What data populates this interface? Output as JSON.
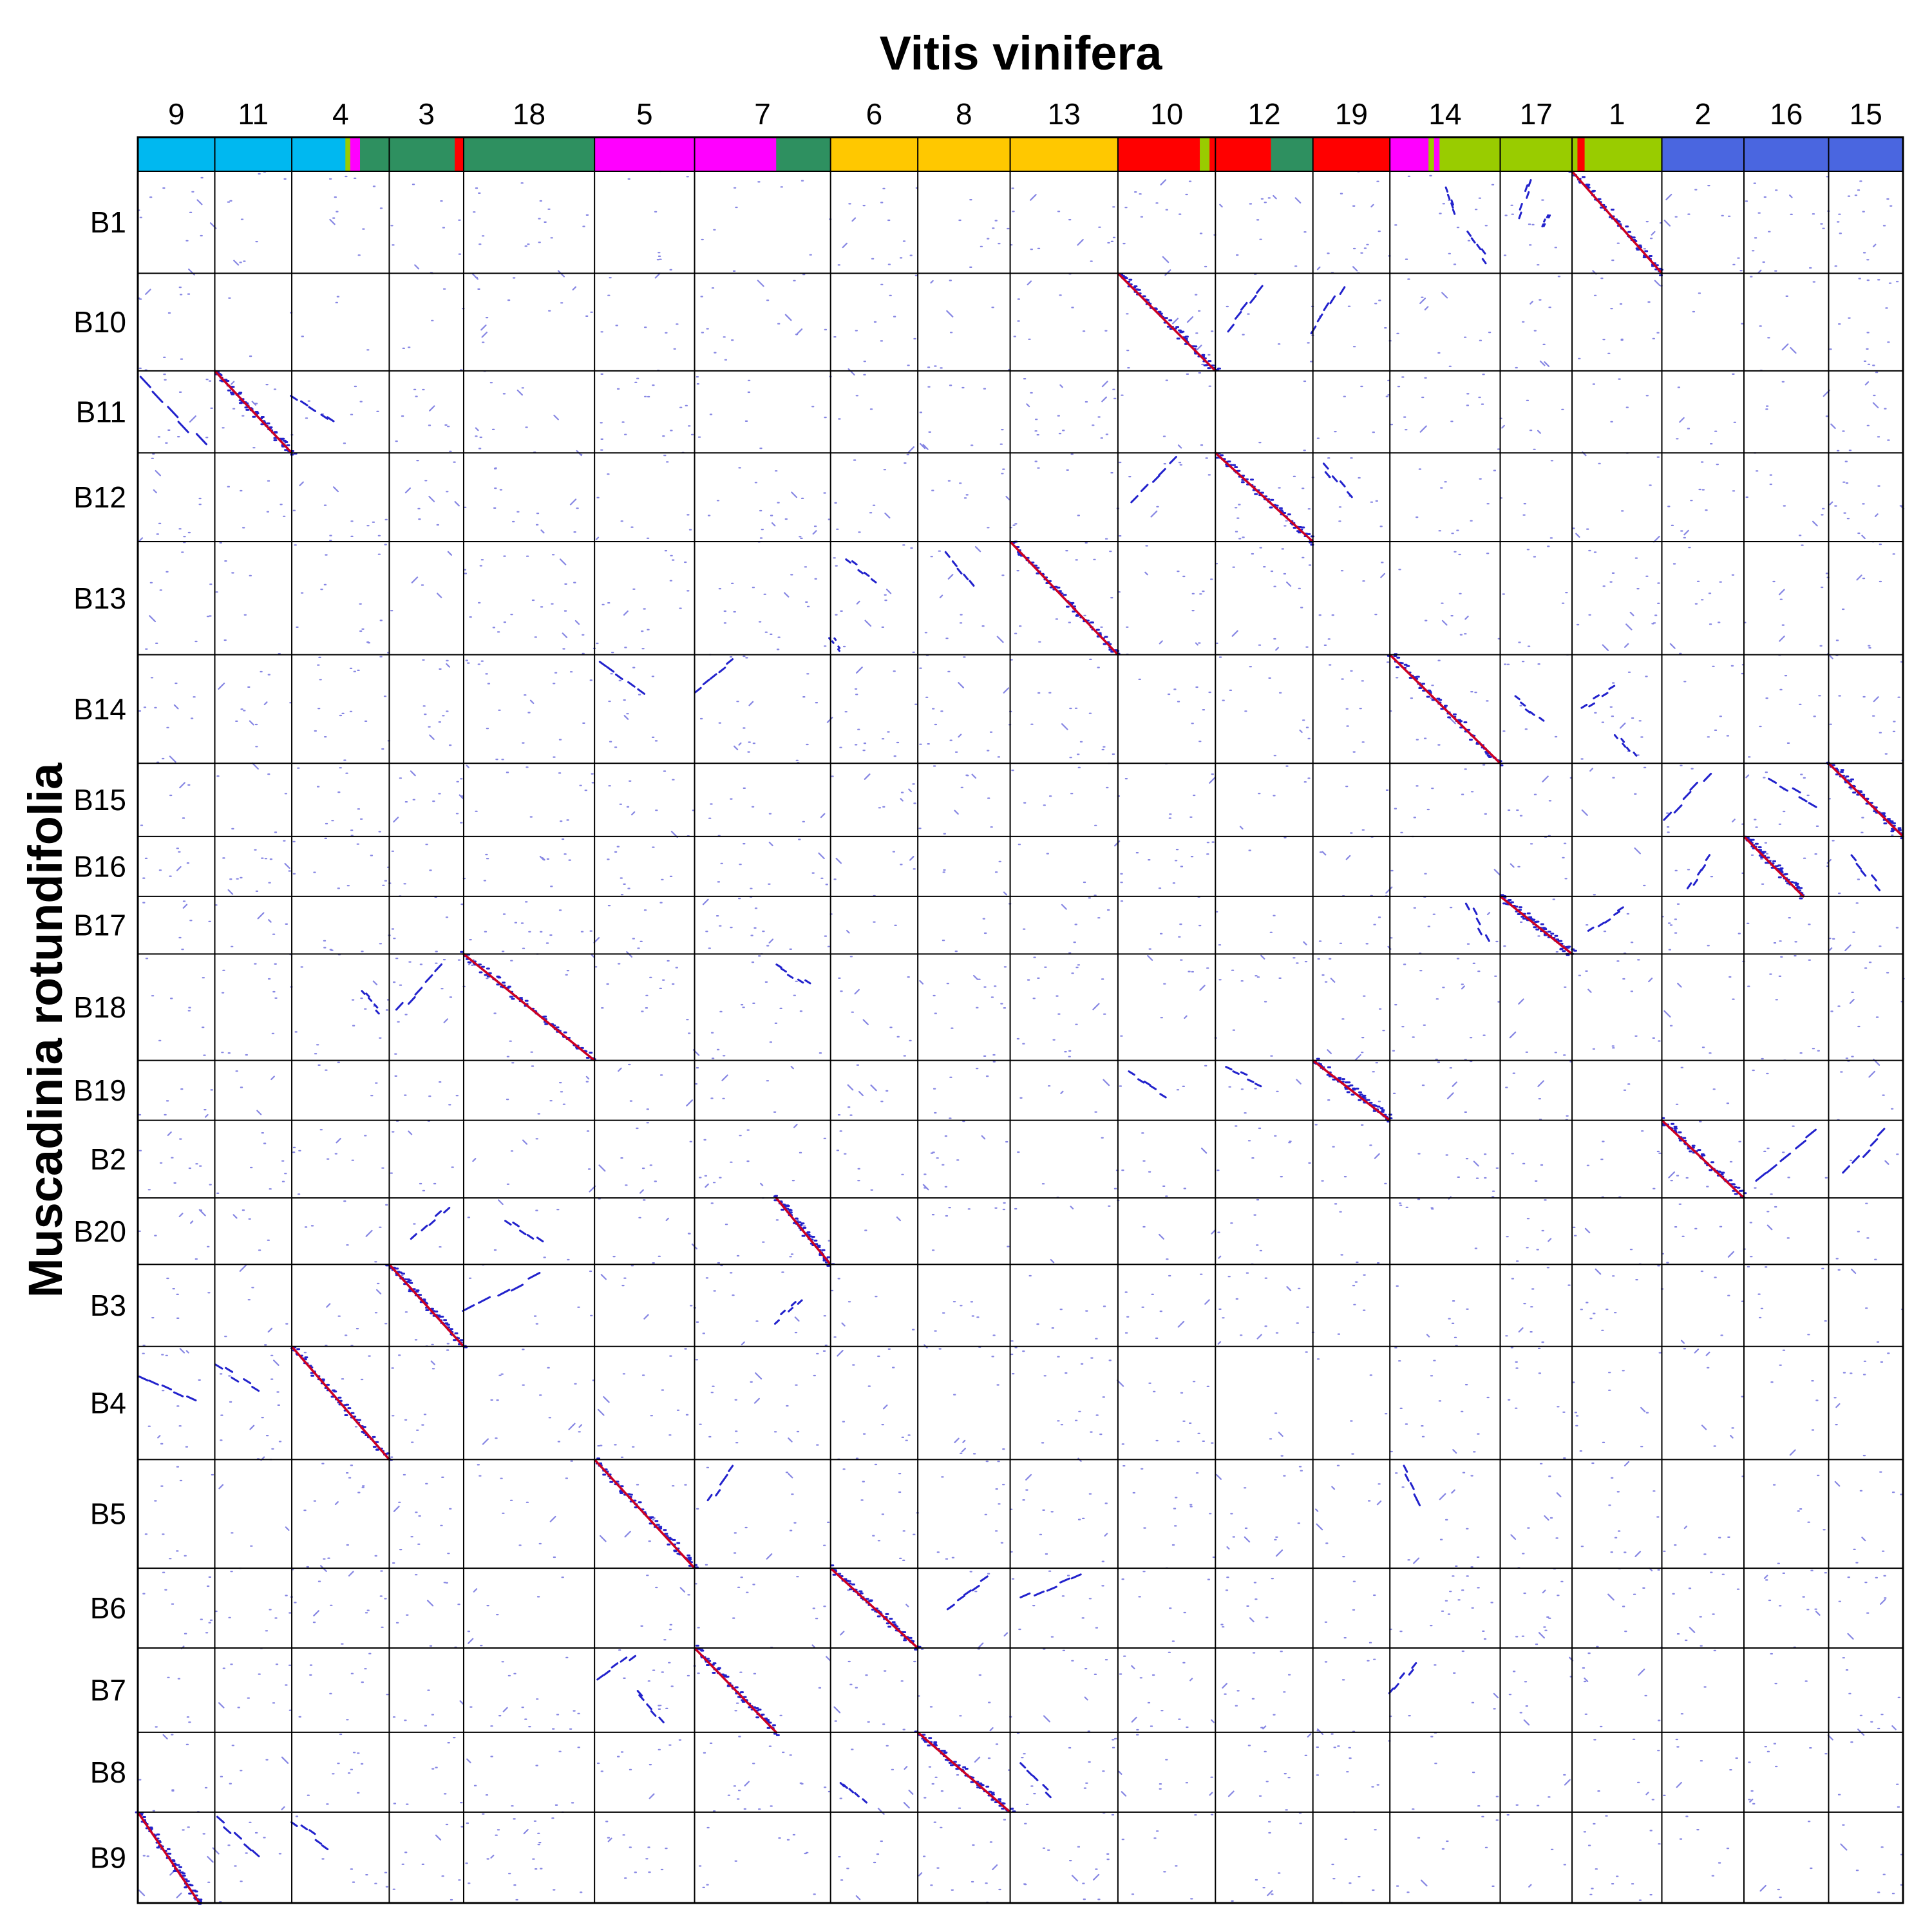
{
  "chart_data": {
    "type": "scatter",
    "title": "Vitis vinifera",
    "xlabel": "",
    "ylabel": "Muscadinia rotundifolia",
    "grid": true,
    "colors": {
      "match_low": "#2222cc",
      "match_high": "#cc0022",
      "frame": "#000000",
      "karyotype": {
        "sky": "#00b8f0",
        "sea": "#2e9060",
        "magenta": "#ff00ff",
        "gold": "#ffc800",
        "red": "#ff0000",
        "lime": "#99cc00",
        "blue": "#4a66e0"
      }
    },
    "x_chromosomes": [
      {
        "name": "9",
        "size": 3.0,
        "color_bands": [
          [
            "sky",
            1.0
          ]
        ]
      },
      {
        "name": "11",
        "size": 3.0,
        "color_bands": [
          [
            "sky",
            1.0
          ]
        ]
      },
      {
        "name": "4",
        "size": 3.8,
        "color_bands": [
          [
            "sky",
            0.55
          ],
          [
            "lime",
            0.05
          ],
          [
            "magenta",
            0.1
          ],
          [
            "sea",
            0.3
          ]
        ]
      },
      {
        "name": "3",
        "size": 2.9,
        "color_bands": [
          [
            "sea",
            0.88
          ],
          [
            "red",
            0.12
          ]
        ]
      },
      {
        "name": "18",
        "size": 5.1,
        "color_bands": [
          [
            "sea",
            1.0
          ]
        ]
      },
      {
        "name": "5",
        "size": 3.9,
        "color_bands": [
          [
            "magenta",
            1.0
          ]
        ]
      },
      {
        "name": "7",
        "size": 5.3,
        "color_bands": [
          [
            "magenta",
            0.6
          ],
          [
            "sea",
            0.4
          ]
        ]
      },
      {
        "name": "6",
        "size": 3.4,
        "color_bands": [
          [
            "gold",
            1.0
          ]
        ]
      },
      {
        "name": "8",
        "size": 3.6,
        "color_bands": [
          [
            "gold",
            1.0
          ]
        ]
      },
      {
        "name": "13",
        "size": 4.2,
        "color_bands": [
          [
            "gold",
            1.0
          ]
        ]
      },
      {
        "name": "10",
        "size": 3.8,
        "color_bands": [
          [
            "red",
            0.84
          ],
          [
            "lime",
            0.1
          ],
          [
            "red",
            0.06
          ]
        ]
      },
      {
        "name": "12",
        "size": 3.8,
        "color_bands": [
          [
            "red",
            0.57
          ],
          [
            "sea",
            0.43
          ]
        ]
      },
      {
        "name": "19",
        "size": 3.0,
        "color_bands": [
          [
            "red",
            1.0
          ]
        ]
      },
      {
        "name": "14",
        "size": 4.3,
        "color_bands": [
          [
            "magenta",
            0.35
          ],
          [
            "lime",
            0.05
          ],
          [
            "magenta",
            0.05
          ],
          [
            "lime",
            0.55
          ]
        ]
      },
      {
        "name": "17",
        "size": 2.8,
        "color_bands": [
          [
            "lime",
            1.0
          ]
        ]
      },
      {
        "name": "1",
        "size": 3.5,
        "color_bands": [
          [
            "lime",
            0.06
          ],
          [
            "red",
            0.08
          ],
          [
            "lime",
            0.86
          ]
        ]
      },
      {
        "name": "2",
        "size": 3.2,
        "color_bands": [
          [
            "blue",
            1.0
          ]
        ]
      },
      {
        "name": "16",
        "size": 3.3,
        "color_bands": [
          [
            "blue",
            1.0
          ]
        ]
      },
      {
        "name": "15",
        "size": 2.9,
        "color_bands": [
          [
            "blue",
            1.0
          ]
        ]
      }
    ],
    "y_chromosomes": [
      {
        "name": "B1",
        "size": 4.6
      },
      {
        "name": "B10",
        "size": 4.4
      },
      {
        "name": "B11",
        "size": 3.7
      },
      {
        "name": "B12",
        "size": 4.0
      },
      {
        "name": "B13",
        "size": 5.1
      },
      {
        "name": "B14",
        "size": 4.9
      },
      {
        "name": "B15",
        "size": 3.3
      },
      {
        "name": "B16",
        "size": 2.7
      },
      {
        "name": "B17",
        "size": 2.6
      },
      {
        "name": "B18",
        "size": 4.8
      },
      {
        "name": "B19",
        "size": 2.7
      },
      {
        "name": "B2",
        "size": 3.5
      },
      {
        "name": "B20",
        "size": 3.0
      },
      {
        "name": "B3",
        "size": 3.7
      },
      {
        "name": "B4",
        "size": 5.1
      },
      {
        "name": "B5",
        "size": 4.9
      },
      {
        "name": "B6",
        "size": 3.6
      },
      {
        "name": "B7",
        "size": 3.8
      },
      {
        "name": "B8",
        "size": 3.6
      },
      {
        "name": "B9",
        "size": 4.1
      }
    ],
    "syntenic_blocks": [
      {
        "x": "1",
        "y": "B1",
        "from": [
          0.0,
          0.0
        ],
        "to": [
          1.0,
          1.0
        ],
        "color": "red"
      },
      {
        "x": "14",
        "y": "B1",
        "from": [
          0.5,
          0.15
        ],
        "to": [
          0.6,
          0.45
        ],
        "color": "blue"
      },
      {
        "x": "14",
        "y": "B1",
        "from": [
          0.7,
          0.6
        ],
        "to": [
          0.9,
          0.9
        ],
        "color": "blue"
      },
      {
        "x": "17",
        "y": "B1",
        "from": [
          0.25,
          0.45
        ],
        "to": [
          0.45,
          0.05
        ],
        "color": "blue"
      },
      {
        "x": "17",
        "y": "B1",
        "from": [
          0.6,
          0.55
        ],
        "to": [
          0.7,
          0.4
        ],
        "color": "blue"
      },
      {
        "x": "10",
        "y": "B10",
        "from": [
          0.0,
          0.0
        ],
        "to": [
          1.0,
          1.0
        ],
        "color": "red"
      },
      {
        "x": "12",
        "y": "B10",
        "from": [
          0.1,
          0.6
        ],
        "to": [
          0.5,
          0.1
        ],
        "color": "blue"
      },
      {
        "x": "19",
        "y": "B10",
        "from": [
          0.0,
          0.6
        ],
        "to": [
          0.4,
          0.1
        ],
        "color": "blue"
      },
      {
        "x": "11",
        "y": "B11",
        "from": [
          0.0,
          0.0
        ],
        "to": [
          1.0,
          1.0
        ],
        "color": "red"
      },
      {
        "x": "9",
        "y": "B11",
        "from": [
          0.0,
          0.05
        ],
        "to": [
          0.9,
          0.95
        ],
        "color": "blue"
      },
      {
        "x": "4",
        "y": "B11",
        "from": [
          0.0,
          0.3
        ],
        "to": [
          0.45,
          0.65
        ],
        "color": "blue"
      },
      {
        "x": "12",
        "y": "B12",
        "from": [
          0.0,
          0.0
        ],
        "to": [
          1.0,
          1.0
        ],
        "color": "red"
      },
      {
        "x": "10",
        "y": "B12",
        "from": [
          0.15,
          0.55
        ],
        "to": [
          0.6,
          0.05
        ],
        "color": "blue"
      },
      {
        "x": "19",
        "y": "B12",
        "from": [
          0.1,
          0.1
        ],
        "to": [
          0.5,
          0.5
        ],
        "color": "blue"
      },
      {
        "x": "13",
        "y": "B13",
        "from": [
          0.0,
          0.0
        ],
        "to": [
          1.0,
          1.0
        ],
        "color": "red"
      },
      {
        "x": "6",
        "y": "B13",
        "from": [
          0.2,
          0.15
        ],
        "to": [
          0.55,
          0.35
        ],
        "color": "blue"
      },
      {
        "x": "6",
        "y": "B13",
        "from": [
          0.1,
          0.95
        ],
        "to": [
          0.0,
          0.85
        ],
        "color": "blue"
      },
      {
        "x": "8",
        "y": "B13",
        "from": [
          0.3,
          0.1
        ],
        "to": [
          0.6,
          0.4
        ],
        "color": "blue"
      },
      {
        "x": "14",
        "y": "B14",
        "from": [
          0.0,
          0.0
        ],
        "to": [
          1.0,
          1.0
        ],
        "color": "red"
      },
      {
        "x": "5",
        "y": "B14",
        "from": [
          0.05,
          0.05
        ],
        "to": [
          0.5,
          0.35
        ],
        "color": "blue"
      },
      {
        "x": "7",
        "y": "B14",
        "from": [
          0.0,
          0.35
        ],
        "to": [
          0.3,
          0.05
        ],
        "color": "blue"
      },
      {
        "x": "17",
        "y": "B14",
        "from": [
          0.2,
          0.4
        ],
        "to": [
          0.6,
          0.6
        ],
        "color": "blue"
      },
      {
        "x": "1",
        "y": "B14",
        "from": [
          0.1,
          0.5
        ],
        "to": [
          0.5,
          0.3
        ],
        "color": "blue"
      },
      {
        "x": "1",
        "y": "B14",
        "from": [
          0.5,
          0.75
        ],
        "to": [
          0.7,
          0.95
        ],
        "color": "blue"
      },
      {
        "x": "15",
        "y": "B15",
        "from": [
          0.0,
          0.0
        ],
        "to": [
          1.0,
          1.0
        ],
        "color": "red"
      },
      {
        "x": "2",
        "y": "B15",
        "from": [
          0.0,
          0.8
        ],
        "to": [
          0.6,
          0.1
        ],
        "color": "blue"
      },
      {
        "x": "16",
        "y": "B15",
        "from": [
          0.3,
          0.2
        ],
        "to": [
          0.9,
          0.6
        ],
        "color": "blue"
      },
      {
        "x": "16",
        "y": "B16",
        "from": [
          0.0,
          0.0
        ],
        "to": [
          0.7,
          1.0
        ],
        "color": "red"
      },
      {
        "x": "2",
        "y": "B16",
        "from": [
          0.3,
          0.9
        ],
        "to": [
          0.6,
          0.3
        ],
        "color": "blue"
      },
      {
        "x": "15",
        "y": "B16",
        "from": [
          0.3,
          0.3
        ],
        "to": [
          0.7,
          0.9
        ],
        "color": "blue"
      },
      {
        "x": "17",
        "y": "B17",
        "from": [
          0.0,
          0.0
        ],
        "to": [
          1.0,
          1.0
        ],
        "color": "red"
      },
      {
        "x": "14",
        "y": "B17",
        "from": [
          0.7,
          0.1
        ],
        "to": [
          0.9,
          0.8
        ],
        "color": "blue"
      },
      {
        "x": "1",
        "y": "B17",
        "from": [
          0.2,
          0.6
        ],
        "to": [
          0.6,
          0.2
        ],
        "color": "blue"
      },
      {
        "x": "18",
        "y": "B18",
        "from": [
          0.0,
          0.0
        ],
        "to": [
          1.0,
          1.0
        ],
        "color": "red"
      },
      {
        "x": "3",
        "y": "B18",
        "from": [
          0.1,
          0.55
        ],
        "to": [
          0.7,
          0.1
        ],
        "color": "blue"
      },
      {
        "x": "7",
        "y": "B18",
        "from": [
          0.6,
          0.1
        ],
        "to": [
          0.85,
          0.3
        ],
        "color": "blue"
      },
      {
        "x": "4",
        "y": "B18",
        "from": [
          0.7,
          0.35
        ],
        "to": [
          0.9,
          0.55
        ],
        "color": "blue"
      },
      {
        "x": "19",
        "y": "B19",
        "from": [
          0.0,
          0.0
        ],
        "to": [
          1.0,
          1.0
        ],
        "color": "red"
      },
      {
        "x": "10",
        "y": "B19",
        "from": [
          0.1,
          0.2
        ],
        "to": [
          0.5,
          0.6
        ],
        "color": "blue"
      },
      {
        "x": "12",
        "y": "B19",
        "from": [
          0.1,
          0.1
        ],
        "to": [
          0.5,
          0.4
        ],
        "color": "blue"
      },
      {
        "x": "2",
        "y": "B2",
        "from": [
          0.0,
          0.0
        ],
        "to": [
          1.0,
          1.0
        ],
        "color": "red"
      },
      {
        "x": "16",
        "y": "B2",
        "from": [
          0.1,
          0.8
        ],
        "to": [
          0.9,
          0.1
        ],
        "color": "blue"
      },
      {
        "x": "15",
        "y": "B2",
        "from": [
          0.2,
          0.7
        ],
        "to": [
          0.8,
          0.1
        ],
        "color": "blue"
      },
      {
        "x": "7",
        "y": "B20",
        "from": [
          0.6,
          0.0
        ],
        "to": [
          1.0,
          1.0
        ],
        "color": "red"
      },
      {
        "x": "3",
        "y": "B20",
        "from": [
          0.3,
          0.6
        ],
        "to": [
          0.8,
          0.1
        ],
        "color": "blue"
      },
      {
        "x": "18",
        "y": "B20",
        "from": [
          0.3,
          0.3
        ],
        "to": [
          0.6,
          0.7
        ],
        "color": "blue"
      },
      {
        "x": "3",
        "y": "B3",
        "from": [
          0.0,
          0.0
        ],
        "to": [
          1.0,
          1.0
        ],
        "color": "red"
      },
      {
        "x": "18",
        "y": "B3",
        "from": [
          0.0,
          0.6
        ],
        "to": [
          0.6,
          0.1
        ],
        "color": "blue"
      },
      {
        "x": "7",
        "y": "B3",
        "from": [
          0.6,
          0.7
        ],
        "to": [
          0.8,
          0.4
        ],
        "color": "blue"
      },
      {
        "x": "4",
        "y": "B4",
        "from": [
          0.0,
          0.0
        ],
        "to": [
          1.0,
          1.0
        ],
        "color": "red"
      },
      {
        "x": "9",
        "y": "B4",
        "from": [
          0.0,
          0.25
        ],
        "to": [
          0.8,
          0.5
        ],
        "color": "blue"
      },
      {
        "x": "11",
        "y": "B4",
        "from": [
          0.0,
          0.15
        ],
        "to": [
          0.6,
          0.4
        ],
        "color": "blue"
      },
      {
        "x": "5",
        "y": "B5",
        "from": [
          0.0,
          0.0
        ],
        "to": [
          1.0,
          1.0
        ],
        "color": "red"
      },
      {
        "x": "7",
        "y": "B5",
        "from": [
          0.1,
          0.4
        ],
        "to": [
          0.3,
          0.05
        ],
        "color": "blue"
      },
      {
        "x": "14",
        "y": "B5",
        "from": [
          0.1,
          0.05
        ],
        "to": [
          0.3,
          0.45
        ],
        "color": "blue"
      },
      {
        "x": "6",
        "y": "B6",
        "from": [
          0.0,
          0.0
        ],
        "to": [
          1.0,
          1.0
        ],
        "color": "red"
      },
      {
        "x": "8",
        "y": "B6",
        "from": [
          0.3,
          0.5
        ],
        "to": [
          0.8,
          0.1
        ],
        "color": "blue"
      },
      {
        "x": "13",
        "y": "B6",
        "from": [
          0.1,
          0.4
        ],
        "to": [
          0.7,
          0.05
        ],
        "color": "blue"
      },
      {
        "x": "7",
        "y": "B7",
        "from": [
          0.0,
          0.0
        ],
        "to": [
          0.6,
          1.0
        ],
        "color": "red"
      },
      {
        "x": "5",
        "y": "B7",
        "from": [
          0.0,
          0.4
        ],
        "to": [
          0.4,
          0.05
        ],
        "color": "blue"
      },
      {
        "x": "5",
        "y": "B7",
        "from": [
          0.4,
          0.5
        ],
        "to": [
          0.7,
          0.9
        ],
        "color": "blue"
      },
      {
        "x": "14",
        "y": "B7",
        "from": [
          0.0,
          0.55
        ],
        "to": [
          0.25,
          0.15
        ],
        "color": "blue"
      },
      {
        "x": "8",
        "y": "B8",
        "from": [
          0.0,
          0.0
        ],
        "to": [
          1.0,
          1.0
        ],
        "color": "red"
      },
      {
        "x": "6",
        "y": "B8",
        "from": [
          0.1,
          0.6
        ],
        "to": [
          0.4,
          0.9
        ],
        "color": "blue"
      },
      {
        "x": "13",
        "y": "B8",
        "from": [
          0.1,
          0.4
        ],
        "to": [
          0.4,
          0.8
        ],
        "color": "blue"
      },
      {
        "x": "9",
        "y": "B9",
        "from": [
          0.0,
          0.0
        ],
        "to": [
          0.8,
          1.0
        ],
        "color": "red"
      },
      {
        "x": "11",
        "y": "B9",
        "from": [
          0.0,
          0.05
        ],
        "to": [
          0.6,
          0.5
        ],
        "color": "blue"
      },
      {
        "x": "4",
        "y": "B9",
        "from": [
          0.0,
          0.1
        ],
        "to": [
          0.4,
          0.4
        ],
        "color": "blue"
      }
    ]
  }
}
